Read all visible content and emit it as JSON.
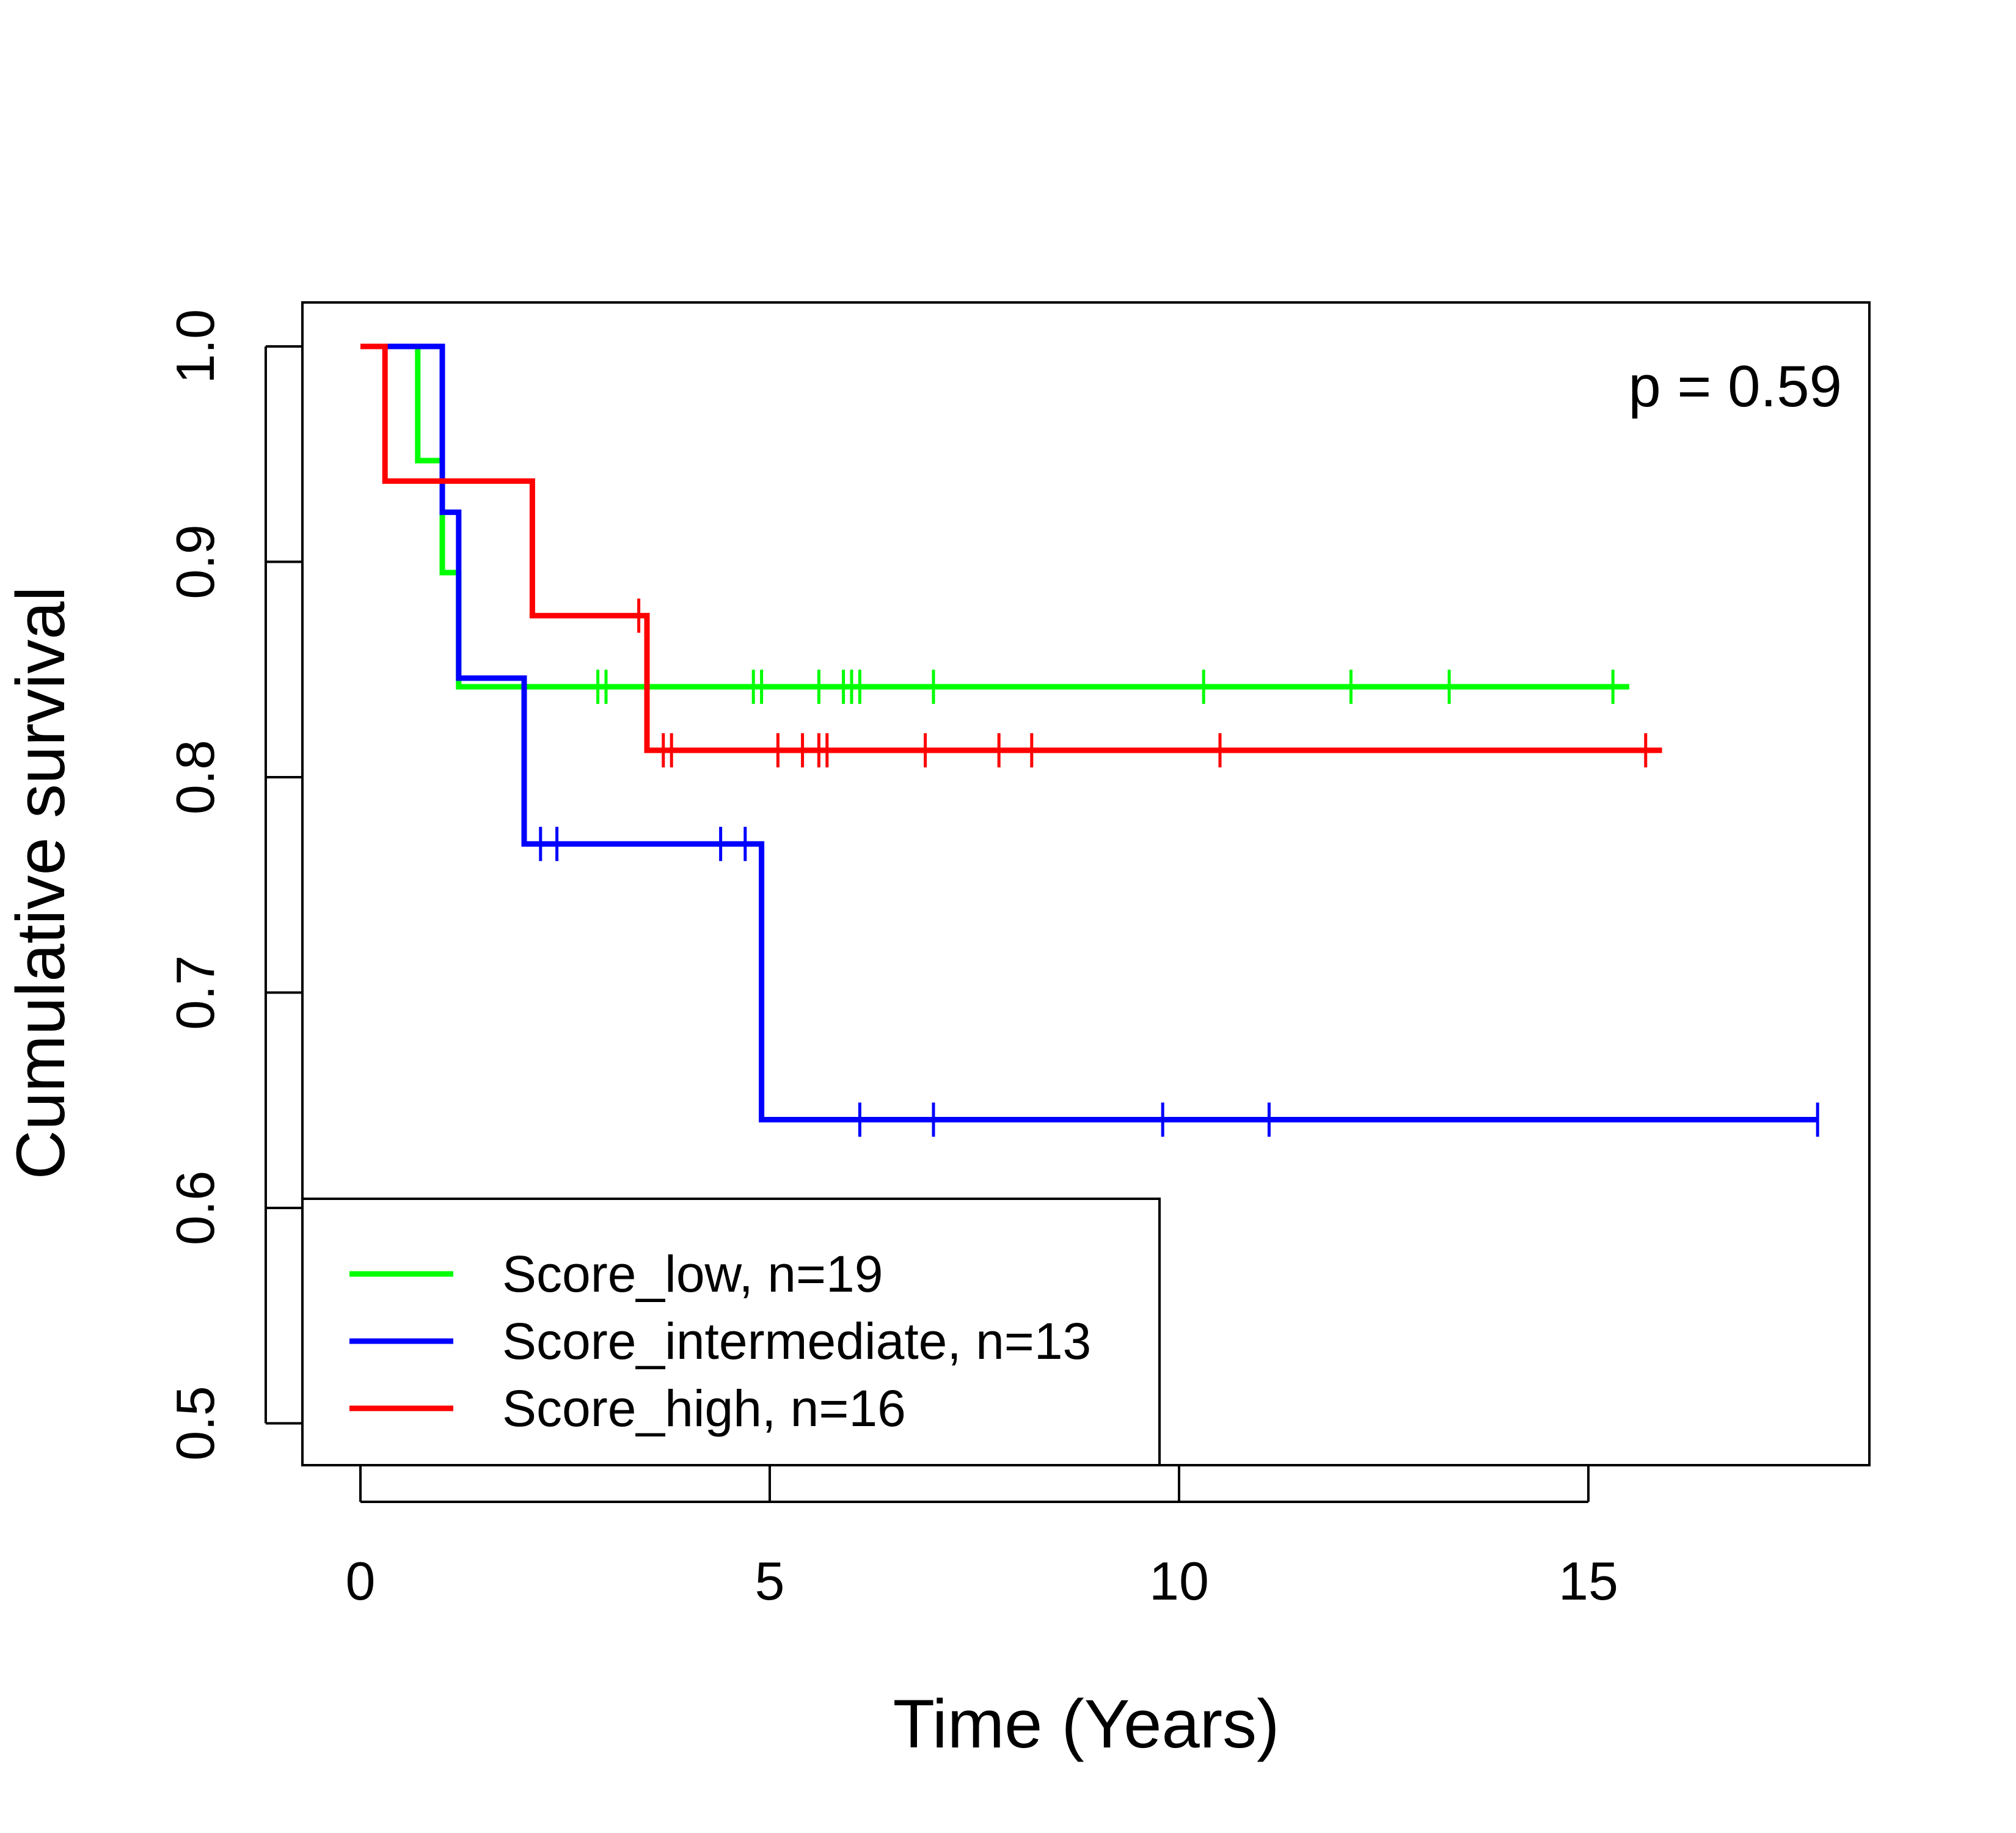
{
  "chart_data": {
    "type": "line",
    "subtype": "kaplan-meier step",
    "xlabel": "Time (Years)",
    "ylabel": "Cumulative survival",
    "xlim": [
      0,
      18
    ],
    "ylim": [
      0.5,
      1.0
    ],
    "x_ticks": [
      "0",
      "5",
      "10",
      "15"
    ],
    "y_ticks": [
      "0.5",
      "0.6",
      "0.7",
      "0.8",
      "0.9",
      "1.0"
    ],
    "grid": false,
    "annotation": "p = 0.59",
    "legend_position": "bottom-left",
    "series": [
      {
        "name": "Score_low, n=19",
        "color": "#00ff00",
        "steps": [
          [
            0,
            1.0
          ],
          [
            0.7,
            0.947
          ],
          [
            1.0,
            0.895
          ],
          [
            1.2,
            0.842
          ]
        ],
        "end_x": 15.5,
        "censored_x": [
          2.9,
          3.0,
          4.8,
          4.9,
          5.6,
          5.9,
          6.0,
          6.1,
          7.0,
          10.3,
          12.1,
          13.3,
          15.3
        ]
      },
      {
        "name": "Score_intermediate, n=13",
        "color": "#0000ff",
        "steps": [
          [
            0,
            1.0
          ],
          [
            1.0,
            0.923
          ],
          [
            1.2,
            0.846
          ],
          [
            2.0,
            0.769
          ],
          [
            4.9,
            0.641
          ]
        ],
        "end_x": 17.8,
        "censored_x": [
          2.2,
          2.4,
          4.4,
          4.7,
          6.1,
          7.0,
          9.8,
          11.1,
          17.8
        ]
      },
      {
        "name": "Score_high, n=16",
        "color": "#ff0000",
        "steps": [
          [
            0,
            1.0
          ],
          [
            0.3,
            0.9375
          ],
          [
            2.1,
            0.875
          ],
          [
            3.5,
            0.8125
          ]
        ],
        "end_x": 15.9,
        "censored_x": [
          3.4,
          3.7,
          3.8,
          5.1,
          5.4,
          5.6,
          5.7,
          6.9,
          7.8,
          8.2,
          10.5,
          15.7
        ]
      }
    ]
  }
}
